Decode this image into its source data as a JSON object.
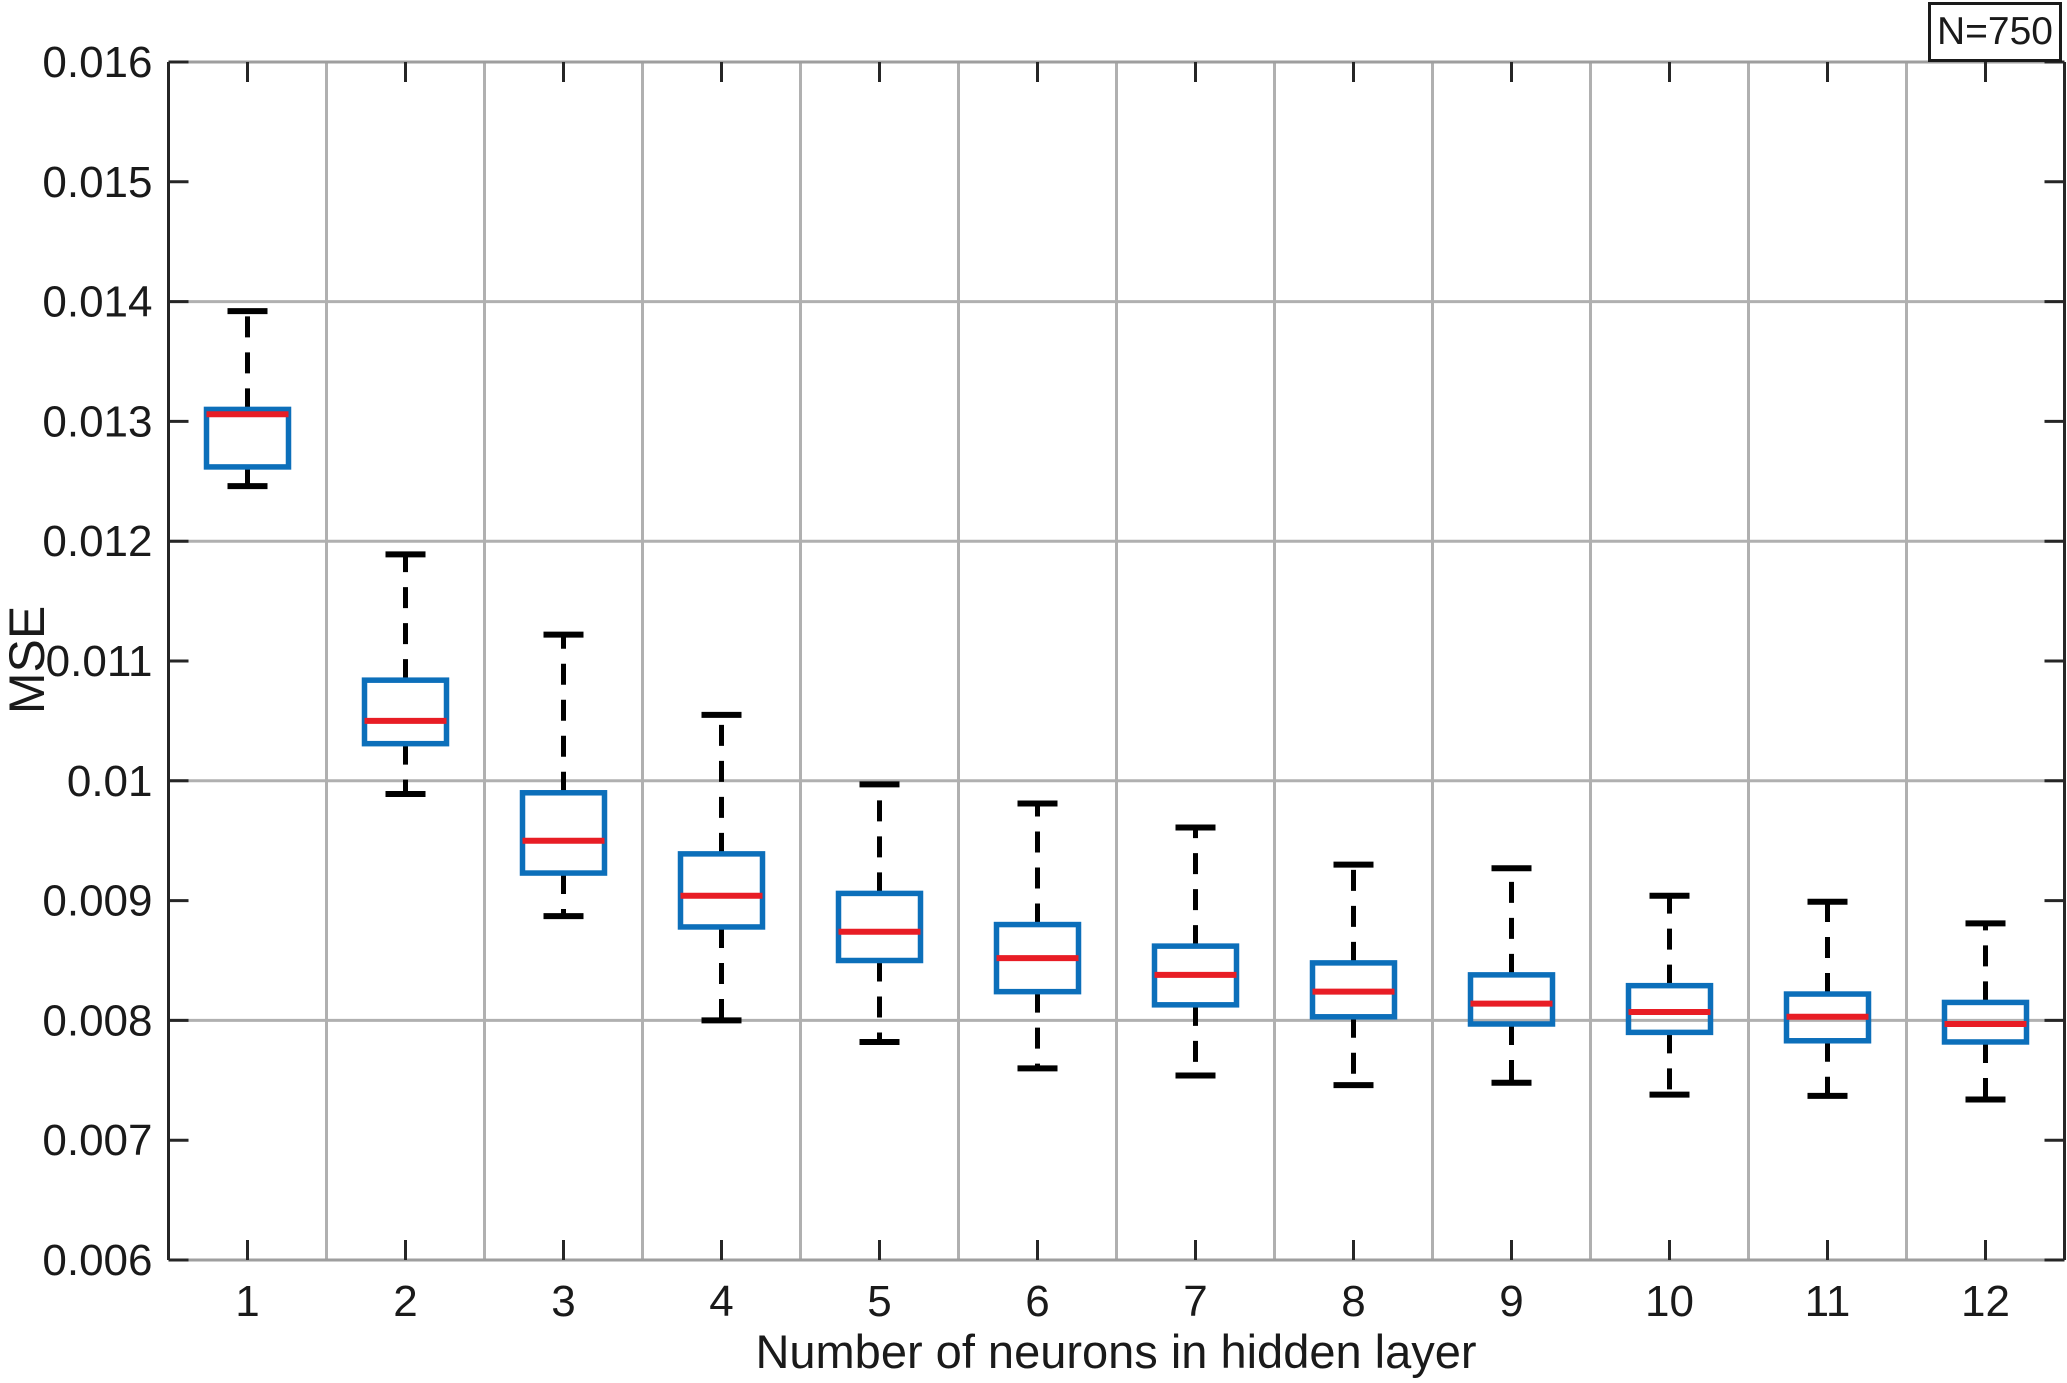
{
  "figure": {
    "ylabel": "MSE",
    "xlabel": "Number of neurons in hidden layer",
    "annotation": "N=750"
  },
  "chart_data": {
    "type": "boxplot",
    "title": "",
    "xlabel": "Number of neurons in hidden layer",
    "ylabel": "MSE",
    "annotation": "N=750",
    "categories": [
      "1",
      "2",
      "3",
      "4",
      "5",
      "6",
      "7",
      "8",
      "9",
      "10",
      "11",
      "12"
    ],
    "ylim": [
      0.006,
      0.016
    ],
    "y_ticks": [
      0.006,
      0.007,
      0.008,
      0.009,
      0.01,
      0.011,
      0.012,
      0.013,
      0.014,
      0.015,
      0.016
    ],
    "y_tick_labels": [
      "0.006",
      "0.007",
      "0.008",
      "0.009",
      "0.01",
      "0.011",
      "0.012",
      "0.013",
      "0.014",
      "0.015",
      "0.016"
    ],
    "h_gridlines": [
      0.008,
      0.01,
      0.012,
      0.014
    ],
    "v_gridlines": "category-boundaries",
    "grid": "on",
    "legend_position": "none",
    "colors": {
      "box": "#0c6fba",
      "median": "#e81d25",
      "whisker": "#000000",
      "grid": "#b0b0b0",
      "frame_light": "#9e9e9e",
      "frame_dark": "#262626",
      "text": "#1a1a1a",
      "background": "#ffffff"
    },
    "boxes": [
      {
        "category": "1",
        "whisker_low": 0.01246,
        "q1": 0.01262,
        "median": 0.01306,
        "q3": 0.0131,
        "whisker_high": 0.01392
      },
      {
        "category": "2",
        "whisker_low": 0.00989,
        "q1": 0.01031,
        "median": 0.0105,
        "q3": 0.01084,
        "whisker_high": 0.01189
      },
      {
        "category": "3",
        "whisker_low": 0.00887,
        "q1": 0.00923,
        "median": 0.0095,
        "q3": 0.0099,
        "whisker_high": 0.01122
      },
      {
        "category": "4",
        "whisker_low": 0.008,
        "q1": 0.00878,
        "median": 0.00904,
        "q3": 0.00939,
        "whisker_high": 0.01055
      },
      {
        "category": "5",
        "whisker_low": 0.00782,
        "q1": 0.0085,
        "median": 0.00874,
        "q3": 0.00906,
        "whisker_high": 0.00997
      },
      {
        "category": "6",
        "whisker_low": 0.0076,
        "q1": 0.00824,
        "median": 0.00852,
        "q3": 0.0088,
        "whisker_high": 0.00981
      },
      {
        "category": "7",
        "whisker_low": 0.00754,
        "q1": 0.00813,
        "median": 0.00838,
        "q3": 0.00862,
        "whisker_high": 0.00961
      },
      {
        "category": "8",
        "whisker_low": 0.00746,
        "q1": 0.00803,
        "median": 0.00824,
        "q3": 0.00848,
        "whisker_high": 0.0093
      },
      {
        "category": "9",
        "whisker_low": 0.00748,
        "q1": 0.00797,
        "median": 0.00814,
        "q3": 0.00838,
        "whisker_high": 0.00927
      },
      {
        "category": "10",
        "whisker_low": 0.00738,
        "q1": 0.0079,
        "median": 0.00807,
        "q3": 0.00829,
        "whisker_high": 0.00904
      },
      {
        "category": "11",
        "whisker_low": 0.00737,
        "q1": 0.00783,
        "median": 0.00803,
        "q3": 0.00822,
        "whisker_high": 0.00899
      },
      {
        "category": "12",
        "whisker_low": 0.00734,
        "q1": 0.00782,
        "median": 0.00797,
        "q3": 0.00815,
        "whisker_high": 0.00881
      }
    ]
  }
}
